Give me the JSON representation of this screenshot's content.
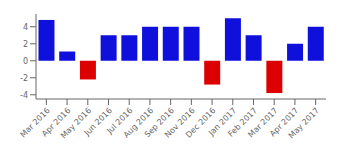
{
  "chart_data": {
    "type": "bar",
    "categories": [
      "Mar 2016",
      "Apr 2016",
      "May 2016",
      "Jun 2016",
      "Jul 2016",
      "Aug 2016",
      "Sep 2016",
      "Nov 2016",
      "Dec 2016",
      "Jan 2017",
      "Feb 2017",
      "Mar 2017",
      "Apr 2017",
      "May 2017"
    ],
    "values": [
      4.8,
      1.1,
      -2.2,
      3.0,
      3.0,
      4.0,
      4.0,
      4.0,
      -2.8,
      5.0,
      3.0,
      -3.8,
      2.0,
      4.0
    ],
    "colors": [
      "#1010dd",
      "#1010dd",
      "#dd0000",
      "#1010dd",
      "#1010dd",
      "#1010dd",
      "#1010dd",
      "#1010dd",
      "#dd0000",
      "#1010dd",
      "#1010dd",
      "#dd0000",
      "#1010dd",
      "#1010dd"
    ],
    "ylim": [
      -4.5,
      5.5
    ],
    "yticks": [
      -4,
      -2,
      0,
      2,
      4
    ],
    "grid": false
  }
}
